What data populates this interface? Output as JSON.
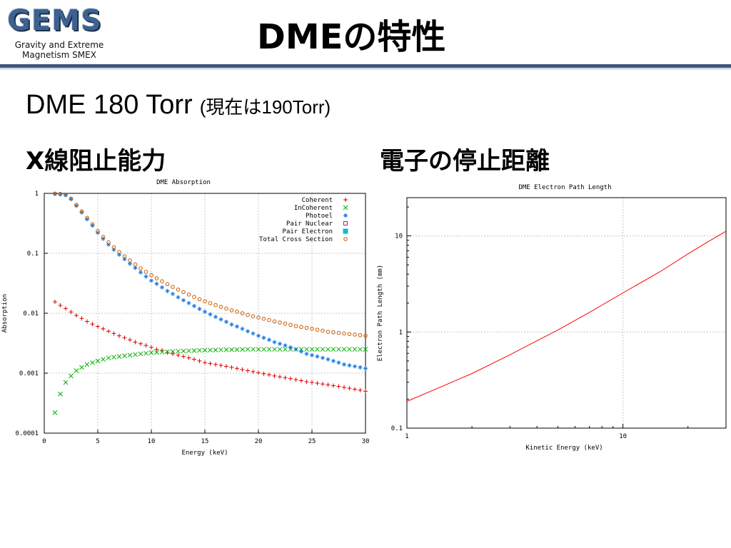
{
  "logo": {
    "mark": "GEMS",
    "line1": "Gravity and Extreme",
    "line2": "Magnetism SMEX"
  },
  "slide": {
    "title": "DMEの特性",
    "subtitle": "DME 180 Torr",
    "subtitle_note": "(現在は190Torr)",
    "left_heading": "X線阻止能力",
    "right_heading": "電子の停止距離"
  },
  "colors": {
    "accent_rule": "#3d5580",
    "coherent": "#e00000",
    "incoherent": "#00b000",
    "photoel": "#1e7fe0",
    "pair_nuclear": "#c000c0",
    "pair_electron": "#00c0c0",
    "total": "#c85a00",
    "path": "#ff0000"
  },
  "chart_data": [
    {
      "type": "scatter",
      "title": "DME Absorption",
      "xlabel": "Energy (keV)",
      "ylabel": "Absorption",
      "xlim": [
        0,
        30
      ],
      "ylim": [
        0.0001,
        1
      ],
      "yscale": "log",
      "grid": true,
      "legend": "top-right",
      "xticks": [
        "0",
        "5",
        "10",
        "15",
        "20",
        "25",
        "30"
      ],
      "yticks": [
        "0.0001",
        "0.001",
        "0.01",
        "0.1",
        "1"
      ],
      "x": [
        1,
        1.5,
        2,
        2.5,
        3,
        3.5,
        4,
        4.5,
        5,
        5.5,
        6,
        6.5,
        7,
        7.5,
        8,
        8.5,
        9,
        9.5,
        10,
        10.5,
        11,
        11.5,
        12,
        12.5,
        13,
        13.5,
        14,
        14.5,
        15,
        15.5,
        16,
        16.5,
        17,
        17.5,
        18,
        18.5,
        19,
        19.5,
        20,
        20.5,
        21,
        21.5,
        22,
        22.5,
        23,
        23.5,
        24,
        24.5,
        25,
        25.5,
        26,
        26.5,
        27,
        27.5,
        28,
        28.5,
        29,
        29.5,
        30
      ],
      "series": [
        {
          "name": "Coherent",
          "marker": "+",
          "values": [
            0.0155,
            0.0135,
            0.012,
            0.0105,
            0.0092,
            0.0082,
            0.0073,
            0.0066,
            0.006,
            0.0055,
            0.005,
            0.0046,
            0.0042,
            0.0039,
            0.0036,
            0.0033,
            0.0031,
            0.0029,
            0.0027,
            0.0025,
            0.0024,
            0.0022,
            0.0021,
            0.002,
            0.0019,
            0.0018,
            0.0017,
            0.0016,
            0.0015,
            0.00145,
            0.0014,
            0.00135,
            0.0013,
            0.00125,
            0.0012,
            0.00115,
            0.0011,
            0.00106,
            0.00102,
            0.00098,
            0.00094,
            0.0009,
            0.00087,
            0.00084,
            0.00081,
            0.00078,
            0.00075,
            0.00072,
            0.0007,
            0.00068,
            0.00066,
            0.00064,
            0.00062,
            0.0006,
            0.00058,
            0.00056,
            0.00054,
            0.00052,
            0.0005
          ]
        },
        {
          "name": "InCoherent",
          "marker": "x",
          "values": [
            0.00022,
            0.00045,
            0.0007,
            0.0009,
            0.0011,
            0.00125,
            0.0014,
            0.0015,
            0.0016,
            0.0017,
            0.0018,
            0.00185,
            0.0019,
            0.00195,
            0.002,
            0.00205,
            0.0021,
            0.00215,
            0.0022,
            0.00222,
            0.00225,
            0.00228,
            0.0023,
            0.00232,
            0.00234,
            0.00236,
            0.00238,
            0.0024,
            0.00242,
            0.00243,
            0.00244,
            0.00245,
            0.00246,
            0.00247,
            0.00248,
            0.00249,
            0.0025,
            0.0025,
            0.0025,
            0.0025,
            0.0025,
            0.0025,
            0.0025,
            0.0025,
            0.0025,
            0.0025,
            0.0025,
            0.0025,
            0.0025,
            0.0025,
            0.0025,
            0.0025,
            0.0025,
            0.0025,
            0.0025,
            0.0025,
            0.0025,
            0.0025,
            0.0025
          ]
        },
        {
          "name": "Photoel",
          "marker": "*",
          "values": [
            0.98,
            0.96,
            0.93,
            0.8,
            0.62,
            0.48,
            0.37,
            0.29,
            0.22,
            0.175,
            0.14,
            0.115,
            0.095,
            0.08,
            0.067,
            0.057,
            0.048,
            0.041,
            0.035,
            0.031,
            0.027,
            0.0235,
            0.021,
            0.0185,
            0.0165,
            0.0148,
            0.0132,
            0.0118,
            0.0106,
            0.0096,
            0.0087,
            0.0079,
            0.0072,
            0.0065,
            0.006,
            0.0055,
            0.005,
            0.0046,
            0.0042,
            0.0039,
            0.0036,
            0.0033,
            0.0031,
            0.0029,
            0.0027,
            0.0025,
            0.0023,
            0.0021,
            0.002,
            0.0019,
            0.0018,
            0.0017,
            0.0016,
            0.0015,
            0.0014,
            0.00135,
            0.0013,
            0.00125,
            0.0012
          ]
        },
        {
          "name": "Pair Nuclear",
          "marker": "square-open",
          "values": []
        },
        {
          "name": "Pair Electron",
          "marker": "square-filled",
          "values": []
        },
        {
          "name": "Total Cross Section",
          "marker": "circle",
          "values": [
            0.99,
            0.98,
            0.96,
            0.82,
            0.64,
            0.5,
            0.39,
            0.305,
            0.235,
            0.188,
            0.152,
            0.126,
            0.105,
            0.089,
            0.076,
            0.065,
            0.056,
            0.049,
            0.043,
            0.0382,
            0.0342,
            0.0305,
            0.0275,
            0.0248,
            0.0225,
            0.0205,
            0.0187,
            0.0171,
            0.0158,
            0.0147,
            0.0137,
            0.0128,
            0.012,
            0.0112,
            0.0106,
            0.01,
            0.0094,
            0.0089,
            0.0085,
            0.0081,
            0.0077,
            0.0073,
            0.007,
            0.0067,
            0.0064,
            0.0061,
            0.0059,
            0.0057,
            0.0055,
            0.0053,
            0.0051,
            0.0049,
            0.0048,
            0.0047,
            0.0046,
            0.0045,
            0.0044,
            0.0043,
            0.0042
          ]
        }
      ]
    },
    {
      "type": "line",
      "title": "DME Electron Path Length",
      "xlabel": "Kinetic Energy (keV)",
      "ylabel": "Electron Path Length (mm)",
      "xscale": "log",
      "yscale": "log",
      "xlim": [
        1,
        30
      ],
      "ylim": [
        0.1,
        25
      ],
      "grid": true,
      "xticks": [
        "1",
        "10"
      ],
      "yticks": [
        "0.1",
        "1",
        "10"
      ],
      "x": [
        1,
        1.5,
        2,
        3,
        5,
        7,
        10,
        15,
        20,
        25,
        30
      ],
      "series": [
        {
          "values": [
            0.19,
            0.28,
            0.37,
            0.58,
            1.05,
            1.6,
            2.55,
            4.3,
            6.5,
            8.8,
            11.2
          ]
        }
      ]
    }
  ]
}
